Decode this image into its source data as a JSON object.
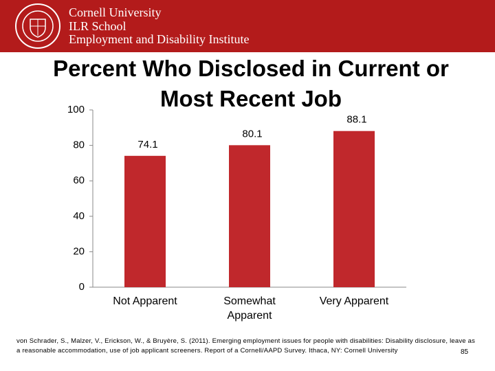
{
  "header": {
    "lines": [
      "Cornell University",
      "ILR School",
      "Employment and Disability Institute"
    ]
  },
  "chart_data": {
    "type": "bar",
    "title": "Percent Who Disclosed in Current or Most Recent Job",
    "categories": [
      "Not Apparent",
      "Somewhat Apparent",
      "Very Apparent"
    ],
    "values": [
      74.1,
      80.1,
      88.1
    ],
    "color": "#c0282c",
    "ylim": [
      0,
      100
    ],
    "yticks": [
      0,
      20,
      40,
      60,
      80,
      100
    ],
    "grid": false
  },
  "footer": {
    "citation": "von Schrader, S., Malzer, V., Erickson, W., & Bruyère, S. (2011). Emerging employment issues for people with disabilities: Disability disclosure, leave as a reasonable accommodation, use of job applicant screeners. Report of a Cornell/AAPD Survey. Ithaca, NY: Cornell University",
    "page_number": "85"
  }
}
